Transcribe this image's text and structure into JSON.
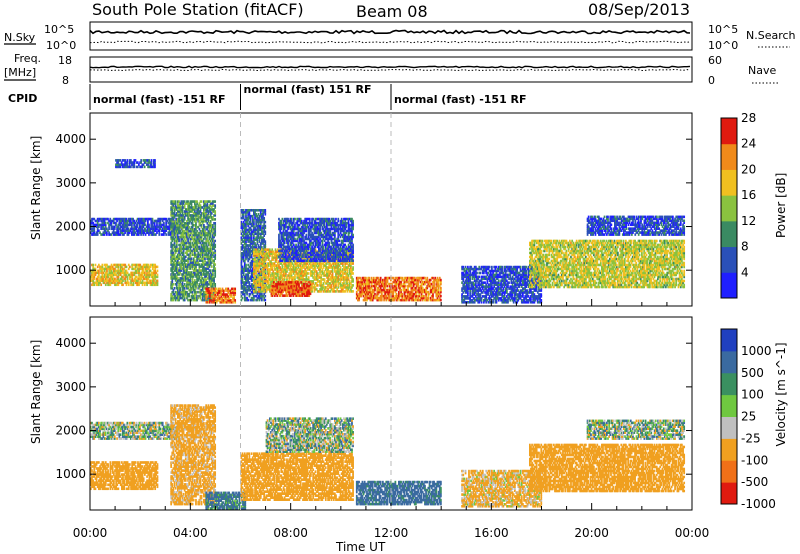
{
  "header": {
    "station": "South Pole Station (fitACF)",
    "beam": "Beam 08",
    "date": "08/Sep/2013"
  },
  "top_panels": {
    "nsky_label": "N.Sky",
    "nsearch_label": "N.Search",
    "nsky_ticks": [
      "10^5",
      "10^0"
    ],
    "nsearch_ticks": [
      "10^5",
      "10^0"
    ],
    "freq_label_1": "Freq.",
    "freq_label_2": "[MHz]",
    "freq_ticks": [
      "18",
      "8"
    ],
    "nave_label": "Nave",
    "nave_ticks": [
      "60",
      "0"
    ],
    "cpid_label": "CPID",
    "cpid_segments": [
      {
        "label": "normal (fast) -151 RF",
        "start": 0,
        "end": 6
      },
      {
        "label": "normal (fast) 151 RF",
        "start": 6,
        "end": 12
      },
      {
        "label": "normal (fast) -151 RF",
        "start": 12,
        "end": 24
      }
    ]
  },
  "chart_data": [
    {
      "type": "heatmap",
      "title": "",
      "xlabel": "Time UT",
      "ylabel": "Slant Range [km]",
      "x_range_hours": [
        0,
        24
      ],
      "x_ticks": [
        "00:00",
        "04:00",
        "08:00",
        "12:00",
        "16:00",
        "20:00",
        "00:00"
      ],
      "ylim": [
        180,
        4600
      ],
      "y_ticks": [
        1000,
        2000,
        3000,
        4000
      ],
      "colorbar": {
        "label": "Power [dB]",
        "ticks": [
          "4",
          "8",
          "12",
          "16",
          "20",
          "24",
          "28"
        ],
        "min": 0,
        "max": 32,
        "colors": [
          "#1f1fff",
          "#2a50b8",
          "#3a8a62",
          "#8ac23f",
          "#f0c020",
          "#f08a1a",
          "#e01a10"
        ]
      },
      "regions": [
        {
          "t0": 0.0,
          "t1": 2.7,
          "r0": 650,
          "r1": 1150,
          "value": 20
        },
        {
          "t0": 0.0,
          "t1": 3.5,
          "r0": 1800,
          "r1": 2200,
          "value": 6
        },
        {
          "t0": 1.0,
          "t1": 2.6,
          "r0": 3350,
          "r1": 3550,
          "value": 6
        },
        {
          "t0": 3.2,
          "t1": 5.0,
          "r0": 300,
          "r1": 2600,
          "value": 12
        },
        {
          "t0": 4.6,
          "t1": 5.8,
          "r0": 250,
          "r1": 600,
          "value": 26
        },
        {
          "t0": 6.0,
          "t1": 7.0,
          "r0": 300,
          "r1": 2400,
          "value": 8
        },
        {
          "t0": 6.5,
          "t1": 10.5,
          "r0": 500,
          "r1": 1500,
          "value": 20
        },
        {
          "t0": 7.2,
          "t1": 8.8,
          "r0": 400,
          "r1": 750,
          "value": 28
        },
        {
          "t0": 7.5,
          "t1": 10.5,
          "r0": 1200,
          "r1": 2200,
          "value": 6
        },
        {
          "t0": 10.6,
          "t1": 14.0,
          "r0": 300,
          "r1": 850,
          "value": 26
        },
        {
          "t0": 14.8,
          "t1": 18.0,
          "r0": 250,
          "r1": 1100,
          "value": 6
        },
        {
          "t0": 17.5,
          "t1": 23.7,
          "r0": 600,
          "r1": 1700,
          "value": 18
        },
        {
          "t0": 19.8,
          "t1": 23.7,
          "r0": 1800,
          "r1": 2250,
          "value": 6
        }
      ]
    },
    {
      "type": "heatmap",
      "title": "",
      "xlabel": "Time UT",
      "ylabel": "Slant Range [km]",
      "x_range_hours": [
        0,
        24
      ],
      "x_ticks": [
        "00:00",
        "04:00",
        "08:00",
        "12:00",
        "16:00",
        "20:00",
        "00:00"
      ],
      "ylim": [
        180,
        4600
      ],
      "y_ticks": [
        1000,
        2000,
        3000,
        4000
      ],
      "colorbar": {
        "label": "Velocity [m s^-1]",
        "ticks": [
          "1000",
          "500",
          "100",
          "25",
          "-25",
          "-100",
          "-500",
          "-1000"
        ],
        "colors": [
          "#2040c0",
          "#3a6aa0",
          "#3a9060",
          "#6fc840",
          "#c0c0c0",
          "#f0a020",
          "#f07018",
          "#e01a10"
        ]
      },
      "regions": [
        {
          "t0": 0.0,
          "t1": 2.7,
          "r0": 650,
          "r1": 1300,
          "value": -300
        },
        {
          "t0": 0.0,
          "t1": 3.5,
          "r0": 1800,
          "r1": 2200,
          "value": 0
        },
        {
          "t0": 3.2,
          "t1": 5.0,
          "r0": 300,
          "r1": 2600,
          "value": -200
        },
        {
          "t0": 4.6,
          "t1": 6.2,
          "r0": 200,
          "r1": 600,
          "value": 150
        },
        {
          "t0": 6.0,
          "t1": 10.5,
          "r0": 400,
          "r1": 1500,
          "value": -250
        },
        {
          "t0": 7.0,
          "t1": 10.5,
          "r0": 1500,
          "r1": 2300,
          "value": 0
        },
        {
          "t0": 10.6,
          "t1": 14.0,
          "r0": 300,
          "r1": 850,
          "value": 200
        },
        {
          "t0": 14.8,
          "t1": 18.0,
          "r0": 250,
          "r1": 1100,
          "value": -150
        },
        {
          "t0": 17.5,
          "t1": 23.7,
          "r0": 600,
          "r1": 1700,
          "value": -300
        },
        {
          "t0": 19.8,
          "t1": 23.7,
          "r0": 1800,
          "r1": 2250,
          "value": 0
        }
      ]
    }
  ]
}
